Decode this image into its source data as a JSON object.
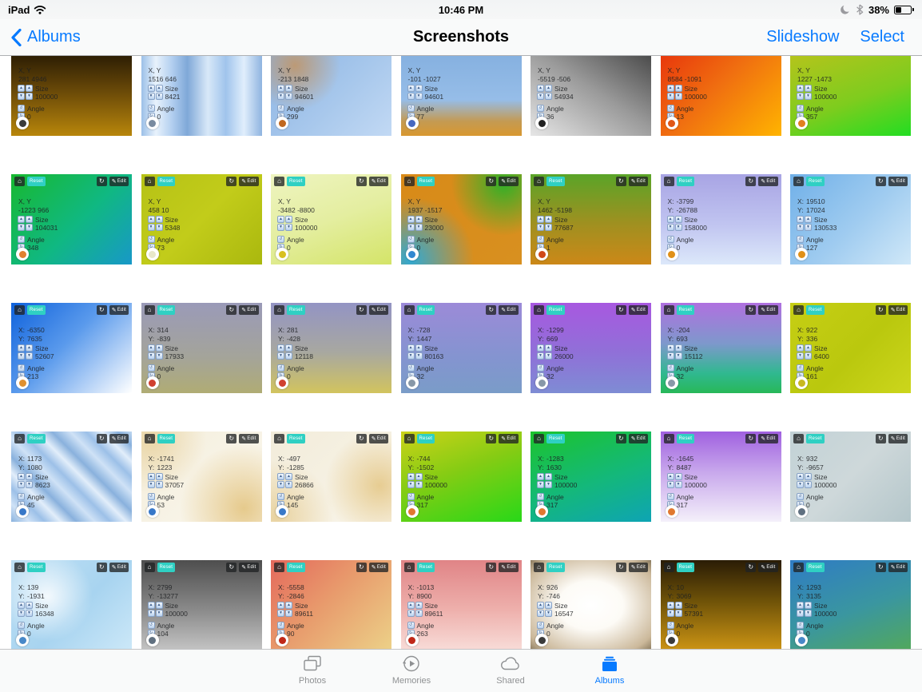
{
  "status_bar": {
    "carrier": "iPad",
    "time": "10:46 PM",
    "battery": "38%"
  },
  "nav_bar": {
    "back": "Albums",
    "title": "Screenshots",
    "slideshow": "Slideshow",
    "select": "Select"
  },
  "badges": {
    "reset": "Reset",
    "edit": "Edit"
  },
  "labels": {
    "xy": "X, Y",
    "x": "X:",
    "y": "Y:",
    "size": "Size",
    "angle": "Angle"
  },
  "icons": {
    "home": "⌂",
    "refresh": "↻",
    "edit_pencil": "✎",
    "stepper_up": "▲",
    "stepper_down": "▼",
    "rotate_ccw": "↺",
    "rotate_cw": "↻"
  },
  "colors": {
    "accent": "#077aff",
    "badge_teal": "#2fd0c3",
    "tab_inactive": "#8f9193"
  },
  "tab_bar": {
    "items": [
      {
        "label": "Photos",
        "active": false
      },
      {
        "label": "Memories",
        "active": false
      },
      {
        "label": "Shared",
        "active": false
      },
      {
        "label": "Albums",
        "active": true
      }
    ]
  },
  "thumbnails": [
    {
      "row": 1,
      "xy": "281 4946",
      "size": "100000",
      "angle": "0",
      "icon": "eye-icon",
      "icon_color": "#3a3a3a",
      "bg": "linear-gradient(180deg,#2e1f04 0%,#6b4a08 45%,#b8860b 100%)"
    },
    {
      "row": 1,
      "xy": "1516 646",
      "size": "8421",
      "angle": "0",
      "icon": "person-icon",
      "icon_color": "#7a8ba0",
      "bg": "linear-gradient(90deg,#9cc0e8 0%,#e8f2fc 12%,#b4d0f0 25%,#7fa8d8 38%,#d8e8f8 55%,#a0c4ec 70%,#e0eefc 85%,#8fb4e0 100%)"
    },
    {
      "row": 1,
      "xy": "-213 1848",
      "size": "94601",
      "angle": "299",
      "icon": "brush-icon",
      "icon_color": "#c06820",
      "bg": "radial-gradient(circle at 20% 12%, rgba(205,140,70,0.7), rgba(205,140,70,0) 38%), linear-gradient(135deg,#8cb4e4 0%,#a8c8ec 55%,#c2d9f4 100%)"
    },
    {
      "row": 1,
      "xy": "-101 -1027",
      "size": "94601",
      "angle": "77",
      "icon": "brush-icon",
      "icon_color": "#4668c0",
      "bg": "linear-gradient(180deg,#86b1e0 0%,#96bde8 55%,#c49a52 82%,#d89830 100%)"
    },
    {
      "row": 1,
      "xy": "-5519 -506",
      "size": "54934",
      "angle": "36",
      "icon": "arrows-icon",
      "icon_color": "#222222",
      "bg": "linear-gradient(to bottom left,#4c4c4c 0%,#9a9a9a 45%,#e6e6e6 100%)"
    },
    {
      "row": 1,
      "xy": "8584 -1091",
      "size": "100000",
      "angle": "13",
      "icon": "palette-icon",
      "icon_color": "#e05818",
      "bg": "linear-gradient(135deg,#e8380c 0%,#f07010 45%,#ffb400 100%)"
    },
    {
      "row": 1,
      "xy": "1227 -1473",
      "size": "100000",
      "angle": "357",
      "icon": "palette-icon",
      "icon_color": "#e08020",
      "bg": "linear-gradient(160deg,#b4c41c 0%,#7ecc1e 55%,#22dd22 100%)"
    },
    {
      "row": 2,
      "xy": "-1223 966",
      "size": "104031",
      "angle": "348",
      "icon": "palette-icon",
      "icon_color": "#e08030",
      "bg": "linear-gradient(135deg,#18b830 0%,#10b882 55%,#1898c8 100%)"
    },
    {
      "row": 2,
      "xy": "458 10",
      "size": "5348",
      "angle": "73",
      "icon": "circle-icon",
      "icon_color": "#e8e8c8",
      "bg": "linear-gradient(135deg,#b6c216 0%,#c2cc1a 50%,#aab80e 100%)"
    },
    {
      "row": 2,
      "xy": "-3482 -8800",
      "size": "100000",
      "angle": "0",
      "icon": "circle-icon",
      "icon_color": "#d8c020",
      "bg": "linear-gradient(160deg,#eef4c0 0%,#e4eea0 50%,#d4e468 100%)"
    },
    {
      "row": 2,
      "xy": "1937 -1517",
      "size": "23000",
      "angle": "0",
      "icon": "pen-icon",
      "icon_color": "#3088d0",
      "bg": "radial-gradient(circle at 85% 10%, rgba(30,180,40,0.9), rgba(30,180,40,0) 40%), radial-gradient(circle at 8% 95%, rgba(40,170,220,0.95), rgba(40,170,220,0) 45%), linear-gradient(135deg,#d88a18 0%,#d89020 100%)"
    },
    {
      "row": 2,
      "xy": "1462 -5198",
      "size": "77687",
      "angle": "1",
      "icon": "palette-icon",
      "icon_color": "#d04818",
      "bg": "linear-gradient(180deg,#5aa428 0%,#a09020 55%,#cc8818 100%)"
    },
    {
      "row": 2,
      "x": "-3799",
      "y": "-26788",
      "size": "158000",
      "angle": "0",
      "icon": "palette-icon",
      "icon_color": "#e09018",
      "bg": "linear-gradient(180deg,#a8a4e4 0%,#c0c4f0 55%,#dce8fa 100%)"
    },
    {
      "row": 2,
      "x": "19510",
      "y": "17024",
      "size": "130533",
      "angle": "127",
      "icon": "palette-icon",
      "icon_color": "#e09018",
      "bg": "linear-gradient(135deg,#70b0e8 0%,#a0ccf0 55%,#d0e8f8 100%)"
    },
    {
      "row": 3,
      "x": "-6350",
      "y": "7635",
      "size": "52607",
      "angle": "213",
      "icon": "sunset-icon",
      "icon_color": "#e09030",
      "bg": "linear-gradient(135deg,#0f62dc 0%,#5a9aec 45%,#ffffff 100%)"
    },
    {
      "row": 3,
      "x": "314",
      "y": "-839",
      "size": "17933",
      "angle": "0",
      "icon": "palette-icon",
      "icon_color": "#d04030",
      "bg": "linear-gradient(180deg,#9a9ab8 0%,#a4a49a 60%,#b0ac74 100%)"
    },
    {
      "row": 3,
      "x": "281",
      "y": "-428",
      "size": "12118",
      "angle": "0",
      "icon": "palette-icon",
      "icon_color": "#d04030",
      "bg": "linear-gradient(180deg,#9394c4 0%,#a8a8a0 55%,#d2c45e 100%)"
    },
    {
      "row": 3,
      "x": "-728",
      "y": "1447",
      "size": "80163",
      "angle": "32",
      "icon": "plus-icon",
      "icon_color": "#8898a8",
      "bg": "linear-gradient(180deg,#9c8ad8 0%,#8494d0 60%,#7a9cc8 100%)"
    },
    {
      "row": 3,
      "x": "-1299",
      "y": "669",
      "size": "26000",
      "angle": "32",
      "icon": "plus-icon",
      "icon_color": "#8898a8",
      "bg": "linear-gradient(180deg,#a858e0 0%,#9070d8 55%,#7e8cd4 100%)"
    },
    {
      "row": 3,
      "x": "-204",
      "y": "693",
      "size": "15112",
      "angle": "32",
      "icon": "plus-icon",
      "icon_color": "#8898a8",
      "bg": "linear-gradient(180deg,#b070e0 0%,#7e98cc 45%,#30b890 78%,#28b858 100%)"
    },
    {
      "row": 3,
      "x": "922",
      "y": "336",
      "size": "6400",
      "angle": "161",
      "icon": "circle-icon",
      "icon_color": "#c8b820",
      "bg": "linear-gradient(135deg,#c6ce14 0%,#bac80e 55%,#ccd61c 100%)"
    },
    {
      "row": 4,
      "x": "1173",
      "y": "1080",
      "size": "8623",
      "angle": "45",
      "icon": "pen-icon",
      "icon_color": "#3878c8",
      "bg": "repeating-linear-gradient(45deg,#8ab2de 0px,#cfe2f6 16px,#9cc0e8 30px,#e2eefa 44px,#88b0dc 58px)"
    },
    {
      "row": 4,
      "x": "-1741",
      "y": "1223",
      "size": "37057",
      "angle": "53",
      "icon": "pen-icon",
      "icon_color": "#3878c8",
      "bg": "radial-gradient(circle at 85% 85%, rgba(214,166,62,0.55), rgba(214,166,62,0) 50%), radial-gradient(circle at 8% 8%, rgba(214,166,62,0.35), rgba(214,166,62,0) 40%), linear-gradient(135deg,#f4eedc 0%,#faf7ee 100%)"
    },
    {
      "row": 4,
      "x": "-497",
      "y": "-1285",
      "size": "26866",
      "angle": "145",
      "icon": "pen-icon",
      "icon_color": "#3878c8",
      "bg": "radial-gradient(circle at 90% 60%, rgba(214,166,62,0.5), rgba(214,166,62,0) 45%), radial-gradient(circle at 5% 95%, rgba(214,166,62,0.4), rgba(214,166,62,0) 40%), linear-gradient(135deg,#f2ecda 0%,#f9f5ea 100%)"
    },
    {
      "row": 4,
      "x": "-744",
      "y": "-1502",
      "size": "100000",
      "angle": "317",
      "icon": "palette-icon",
      "icon_color": "#e07830",
      "bg": "linear-gradient(160deg,#ccd218 0%,#84cc14 45%,#28d818 100%)"
    },
    {
      "row": 4,
      "x": "-1283",
      "y": "1630",
      "size": "100000",
      "angle": "317",
      "icon": "palette-icon",
      "icon_color": "#e07830",
      "bg": "linear-gradient(160deg,#1cc42c 0%,#14b87a 55%,#0ea4b4 100%)"
    },
    {
      "row": 4,
      "x": "-1645",
      "y": "8487",
      "size": "100000",
      "angle": "317",
      "icon": "palette-icon",
      "icon_color": "#e07830",
      "bg": "linear-gradient(180deg,#a060e0 0%,#c8a8ec 45%,#f4f0fa 100%)"
    },
    {
      "row": 4,
      "x": "932",
      "y": "-9657",
      "size": "100000",
      "angle": "0",
      "icon": "pencil-icon",
      "icon_color": "#607080",
      "bg": "linear-gradient(135deg,#c2d2d6 0%,#ced8da 50%,#b4c6ca 100%)"
    },
    {
      "row": 5,
      "x": "139",
      "y": "-1931",
      "size": "16348",
      "angle": "0",
      "icon": "pencil-icon",
      "icon_color": "#4888c8",
      "bg": "radial-gradient(circle at 30% 40%, rgba(255,255,255,0.85), rgba(255,255,255,0) 45%), linear-gradient(135deg,#bfe0f4 0%,#a8d4f0 55%,#cce8f8 100%)"
    },
    {
      "row": 5,
      "x": "2799",
      "y": "-13277",
      "size": "100000",
      "angle": "104",
      "icon": "magnifier-icon",
      "icon_color": "#607080",
      "bg": "linear-gradient(180deg,#4e4e4e 0%,#8a8a8a 55%,#c4c4c4 100%)"
    },
    {
      "row": 5,
      "x": "-5558",
      "y": "-2846",
      "size": "89611",
      "angle": "90",
      "icon": "flag-icon",
      "icon_color": "#c02818",
      "bg": "linear-gradient(135deg,#e4695c 0%,#e89a6c 45%,#ecd188 100%)"
    },
    {
      "row": 5,
      "x": "-1013",
      "y": "8900",
      "size": "89611",
      "angle": "263",
      "icon": "flag-icon",
      "icon_color": "#c02818",
      "bg": "linear-gradient(180deg,#e08486 0%,#eeb0ac 55%,#f8dcd8 100%)"
    },
    {
      "row": 5,
      "x": "926",
      "y": "-746",
      "size": "16547",
      "angle": "0",
      "icon": "eye-icon",
      "icon_color": "#3a3a3a",
      "bg": "radial-gradient(ellipse at 50% 50%, #ffffff 0%, #fdfbf6 38%, #cbb89a 85%, #8a7a5e 100%)"
    },
    {
      "row": 5,
      "x": "10",
      "y": "3069",
      "size": "57391",
      "angle": "0",
      "icon": "eye-icon",
      "icon_color": "#3a3a3a",
      "bg": "linear-gradient(180deg,#2a1c06 0%,#6e5208 45%,#cc9414 100%)"
    },
    {
      "row": 5,
      "x": "1293",
      "y": "3135",
      "size": "100000",
      "angle": "0",
      "icon": "magnifier-icon",
      "icon_color": "#4888c8",
      "bg": "linear-gradient(160deg,#2f7cc4 0%,#3a96a0 55%,#52a85c 100%)"
    }
  ]
}
